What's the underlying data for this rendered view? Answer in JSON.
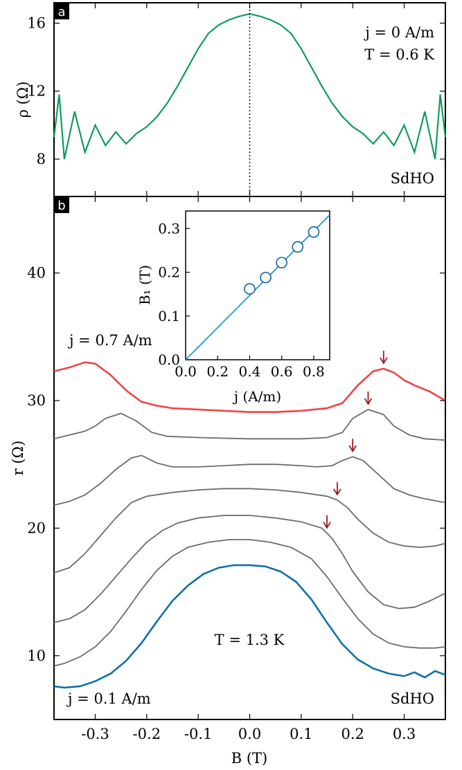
{
  "chart_data": [
    {
      "panel": "a",
      "type": "line",
      "xlim": [
        -0.38,
        0.38
      ],
      "ylim": [
        5.8,
        17.2
      ],
      "xticks": [
        -0.3,
        -0.2,
        -0.1,
        0.0,
        0.1,
        0.2,
        0.3
      ],
      "yticks": [
        8,
        12,
        16
      ],
      "ylabel": "ρ (Ω)",
      "annotation_lines": [
        "j = 0 A/m",
        "T = 0.6 K"
      ],
      "label_sdho": "SdHO",
      "vline_x": 0.0,
      "color": "#0f9d58",
      "series": [
        {
          "x": [
            -0.38,
            -0.37,
            -0.36,
            -0.34,
            -0.32,
            -0.3,
            -0.28,
            -0.26,
            -0.24,
            -0.22,
            -0.2,
            -0.18,
            -0.16,
            -0.14,
            -0.12,
            -0.1,
            -0.08,
            -0.06,
            -0.04,
            -0.02,
            0.0,
            0.02,
            0.04,
            0.06,
            0.08,
            0.1,
            0.12,
            0.14,
            0.16,
            0.18,
            0.2,
            0.22,
            0.24,
            0.26,
            0.28,
            0.3,
            0.32,
            0.34,
            0.36,
            0.37,
            0.38
          ],
          "y": [
            9.3,
            11.8,
            8.0,
            10.8,
            8.4,
            10.0,
            8.8,
            9.6,
            8.9,
            9.5,
            9.9,
            10.5,
            11.3,
            12.3,
            13.4,
            14.5,
            15.4,
            15.9,
            16.2,
            16.4,
            16.55,
            16.4,
            16.2,
            15.9,
            15.4,
            14.5,
            13.4,
            12.3,
            11.3,
            10.5,
            9.9,
            9.5,
            8.9,
            9.6,
            8.8,
            10.0,
            8.4,
            10.8,
            8.0,
            11.8,
            9.3
          ]
        }
      ]
    },
    {
      "panel": "b",
      "type": "line",
      "xlim": [
        -0.38,
        0.38
      ],
      "ylim": [
        5.0,
        46.0
      ],
      "xticks": [
        -0.3,
        -0.2,
        -0.1,
        0.0,
        0.1,
        0.2,
        0.3
      ],
      "yticks": [
        10,
        20,
        30,
        40
      ],
      "xlabel": "B (T)",
      "ylabel": "r (Ω)",
      "annotation_temp": "T = 1.3 K",
      "label_top": "j = 0.7 A/m",
      "label_bottom": "j = 0.1 A/m",
      "label_sdho": "SdHO",
      "colors": {
        "top": "#ef4444",
        "middle": "#6b6b6b",
        "bottom": "#0f6fa8",
        "arrow": "#a01818"
      },
      "arrows_x": [
        0.26,
        0.23,
        0.2,
        0.17,
        0.15
      ],
      "series": [
        {
          "name": "j = 0.7 A/m",
          "x": [
            -0.38,
            -0.35,
            -0.32,
            -0.3,
            -0.27,
            -0.24,
            -0.21,
            -0.18,
            -0.15,
            -0.1,
            -0.05,
            0.0,
            0.05,
            0.1,
            0.15,
            0.18,
            0.21,
            0.24,
            0.26,
            0.28,
            0.3,
            0.32,
            0.35,
            0.38
          ],
          "y": [
            32.3,
            32.6,
            33.0,
            32.9,
            32.0,
            30.8,
            29.9,
            29.6,
            29.4,
            29.3,
            29.2,
            29.1,
            29.1,
            29.2,
            29.4,
            29.8,
            31.2,
            32.3,
            32.5,
            32.2,
            31.6,
            31.2,
            30.7,
            30.0
          ]
        },
        {
          "name": "",
          "x": [
            -0.38,
            -0.35,
            -0.32,
            -0.3,
            -0.28,
            -0.25,
            -0.22,
            -0.19,
            -0.16,
            -0.1,
            0.0,
            0.1,
            0.15,
            0.18,
            0.2,
            0.23,
            0.26,
            0.28,
            0.31,
            0.34,
            0.38
          ],
          "y": [
            27.0,
            27.3,
            27.6,
            28.0,
            28.6,
            29.0,
            28.4,
            27.5,
            27.2,
            27.1,
            27.0,
            27.0,
            27.1,
            27.5,
            28.6,
            29.3,
            28.9,
            28.0,
            27.3,
            27.0,
            26.9
          ]
        },
        {
          "name": "",
          "x": [
            -0.38,
            -0.35,
            -0.32,
            -0.29,
            -0.26,
            -0.23,
            -0.21,
            -0.18,
            -0.15,
            -0.1,
            -0.05,
            0.0,
            0.05,
            0.1,
            0.13,
            0.16,
            0.18,
            0.2,
            0.22,
            0.25,
            0.28,
            0.31,
            0.34,
            0.38
          ],
          "y": [
            21.8,
            22.1,
            22.6,
            23.5,
            24.6,
            25.5,
            25.7,
            25.1,
            24.8,
            24.8,
            24.9,
            25.0,
            25.0,
            24.9,
            24.8,
            24.9,
            25.3,
            25.6,
            25.3,
            24.2,
            23.1,
            22.6,
            22.3,
            22.0
          ]
        },
        {
          "name": "",
          "x": [
            -0.38,
            -0.35,
            -0.32,
            -0.29,
            -0.26,
            -0.23,
            -0.2,
            -0.15,
            -0.1,
            -0.05,
            0.0,
            0.05,
            0.1,
            0.15,
            0.17,
            0.19,
            0.21,
            0.24,
            0.27,
            0.3,
            0.33,
            0.36,
            0.38
          ],
          "y": [
            16.5,
            16.9,
            18.0,
            19.4,
            20.8,
            22.0,
            22.5,
            22.8,
            23.0,
            23.1,
            23.1,
            23.0,
            22.8,
            22.5,
            22.2,
            21.6,
            20.7,
            19.6,
            18.9,
            18.6,
            18.5,
            18.6,
            18.8
          ]
        },
        {
          "name": "",
          "x": [
            -0.38,
            -0.35,
            -0.32,
            -0.29,
            -0.26,
            -0.23,
            -0.2,
            -0.17,
            -0.14,
            -0.1,
            -0.05,
            0.0,
            0.05,
            0.1,
            0.14,
            0.16,
            0.18,
            0.2,
            0.23,
            0.26,
            0.29,
            0.32,
            0.35,
            0.38
          ],
          "y": [
            12.6,
            12.9,
            13.6,
            14.8,
            16.2,
            17.6,
            18.9,
            19.8,
            20.4,
            20.8,
            21.0,
            21.0,
            20.8,
            20.5,
            20.0,
            19.2,
            18.0,
            16.6,
            15.0,
            14.0,
            13.7,
            13.8,
            14.3,
            14.9
          ]
        },
        {
          "name": "",
          "x": [
            -0.38,
            -0.36,
            -0.33,
            -0.3,
            -0.27,
            -0.24,
            -0.21,
            -0.18,
            -0.15,
            -0.12,
            -0.08,
            -0.04,
            0.0,
            0.04,
            0.08,
            0.12,
            0.15,
            0.18,
            0.21,
            0.24,
            0.27,
            0.3,
            0.33,
            0.36,
            0.38
          ],
          "y": [
            9.2,
            9.4,
            9.9,
            10.7,
            11.9,
            13.5,
            15.2,
            16.7,
            17.8,
            18.5,
            18.9,
            19.1,
            19.1,
            18.9,
            18.5,
            17.6,
            16.2,
            14.5,
            12.9,
            11.7,
            11.0,
            10.7,
            10.6,
            10.6,
            10.7
          ]
        },
        {
          "name": "j = 0.1 A/m",
          "x": [
            -0.38,
            -0.36,
            -0.33,
            -0.3,
            -0.27,
            -0.24,
            -0.21,
            -0.18,
            -0.15,
            -0.12,
            -0.09,
            -0.06,
            -0.03,
            0.0,
            0.03,
            0.06,
            0.09,
            0.12,
            0.15,
            0.18,
            0.21,
            0.24,
            0.27,
            0.3,
            0.32,
            0.34,
            0.36,
            0.38
          ],
          "y": [
            7.6,
            7.5,
            7.6,
            8.0,
            8.6,
            9.6,
            11.0,
            12.7,
            14.3,
            15.5,
            16.4,
            16.9,
            17.1,
            17.1,
            17.0,
            16.6,
            15.8,
            14.4,
            12.6,
            10.9,
            9.7,
            9.0,
            8.6,
            8.4,
            8.7,
            8.3,
            8.8,
            8.5
          ]
        }
      ]
    },
    {
      "panel": "b-inset",
      "type": "scatter",
      "xlim": [
        0.0,
        0.9
      ],
      "ylim": [
        0.0,
        0.34
      ],
      "xticks": [
        0.0,
        0.2,
        0.4,
        0.6,
        0.8
      ],
      "yticks": [
        0.0,
        0.1,
        0.2,
        0.3
      ],
      "xlabel": "j (A/m)",
      "ylabel": "B₁ (T)",
      "points": {
        "x": [
          0.4,
          0.5,
          0.6,
          0.7,
          0.8
        ],
        "y": [
          0.162,
          0.188,
          0.222,
          0.258,
          0.292
        ]
      },
      "fit_line": {
        "x": [
          0.0,
          0.9
        ],
        "y": [
          0.0,
          0.331
        ]
      },
      "color": "#1a9ad6"
    }
  ],
  "panel_labels": {
    "a": "a",
    "b": "b"
  }
}
